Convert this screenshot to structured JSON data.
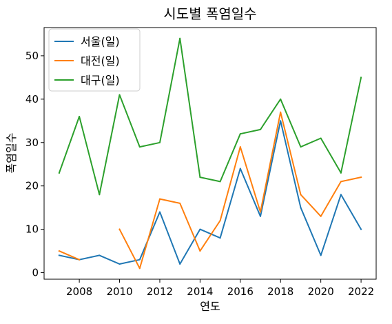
{
  "chart_data": {
    "type": "line",
    "title": "시도별 폭염일수",
    "xlabel": "연도",
    "ylabel": "폭염일수",
    "x": [
      2007,
      2008,
      2009,
      2010,
      2011,
      2012,
      2013,
      2014,
      2015,
      2016,
      2017,
      2018,
      2019,
      2020,
      2021,
      2022
    ],
    "xlim": [
      2006.25,
      2022.75
    ],
    "ylim": [
      -1.5,
      56.5
    ],
    "xticks": [
      2008,
      2010,
      2012,
      2014,
      2016,
      2018,
      2020,
      2022
    ],
    "yticks": [
      0,
      10,
      20,
      30,
      40,
      50
    ],
    "grid": false,
    "legend_position": "upper-left",
    "series": [
      {
        "name": "서울(일)",
        "color": "#1f77b4",
        "values": [
          4,
          3,
          4,
          2,
          3,
          14,
          2,
          10,
          8,
          24,
          13,
          35,
          15,
          4,
          18,
          10
        ]
      },
      {
        "name": "대전(일)",
        "color": "#ff7f0e",
        "values": [
          5,
          3,
          null,
          10,
          1,
          17,
          16,
          5,
          12,
          29,
          14,
          37,
          18,
          13,
          21,
          22
        ]
      },
      {
        "name": "대구(일)",
        "color": "#2ca02c",
        "values": [
          23,
          36,
          18,
          41,
          29,
          30,
          54,
          22,
          21,
          32,
          33,
          40,
          29,
          31,
          23,
          45
        ]
      }
    ]
  }
}
